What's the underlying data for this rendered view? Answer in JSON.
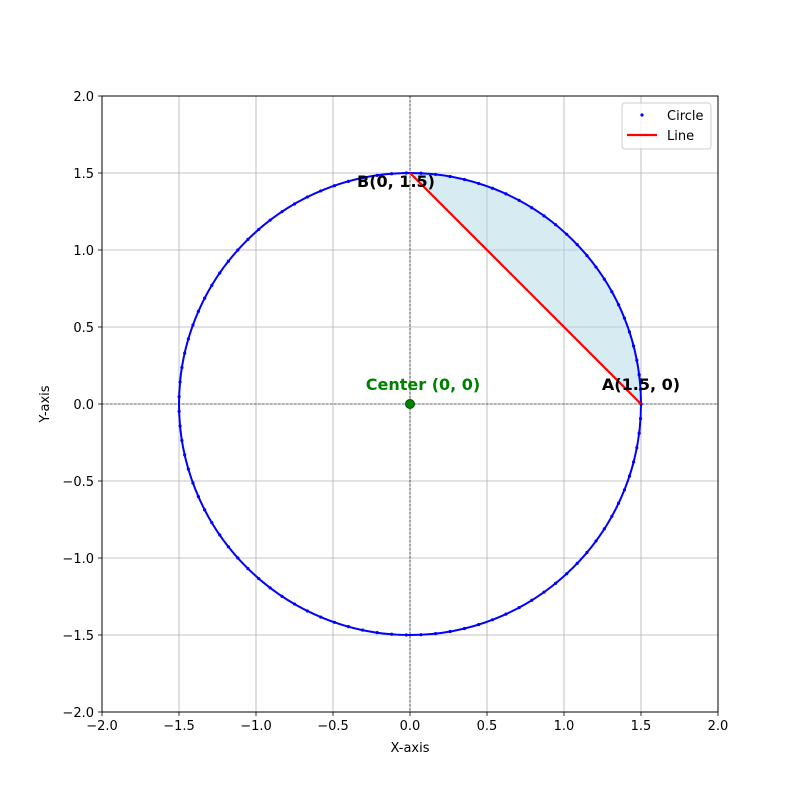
{
  "chart_data": {
    "type": "scatter",
    "xlabel": "X-axis",
    "ylabel": "Y-axis",
    "xlim": [
      -2.0,
      2.0
    ],
    "ylim": [
      -2.0,
      2.0
    ],
    "xticks": [
      -2.0,
      -1.5,
      -1.0,
      -0.5,
      0.0,
      0.5,
      1.0,
      1.5,
      2.0
    ],
    "yticks": [
      -2.0,
      -1.5,
      -1.0,
      -0.5,
      0.0,
      0.5,
      1.0,
      1.5,
      2.0
    ],
    "xtick_labels": [
      "−2.0",
      "−1.5",
      "−1.0",
      "−0.5",
      "0.0",
      "0.5",
      "1.0",
      "1.5",
      "2.0"
    ],
    "ytick_labels": [
      "−2.0",
      "−1.5",
      "−1.0",
      "−0.5",
      "0.0",
      "0.5",
      "1.0",
      "1.5",
      "2.0"
    ],
    "grid": true,
    "legend_position": "top-right",
    "circle": {
      "name": "Circle",
      "center": [
        0,
        0
      ],
      "radius": 1.5,
      "point_count": 100,
      "color": "#0000ff"
    },
    "line": {
      "name": "Line",
      "from": [
        1.5,
        0
      ],
      "to": [
        0,
        1.5
      ],
      "color": "#ff0000"
    },
    "shaded_segment": {
      "from_angle_deg": 0,
      "to_angle_deg": 90,
      "color": "#add8e6"
    },
    "points": [
      {
        "label": "A(1.5, 0)",
        "x": 1.5,
        "y": 0,
        "color": "#000000"
      },
      {
        "label": "B(0, 1.5)",
        "x": 0,
        "y": 1.5,
        "color": "#000000"
      }
    ],
    "center_point": {
      "label": "Center (0, 0)",
      "x": 0,
      "y": 0,
      "color": "#008000"
    },
    "legend": [
      {
        "label": "Circle",
        "marker": "dot",
        "color": "#0000ff"
      },
      {
        "label": "Line",
        "marker": "line",
        "color": "#ff0000"
      }
    ]
  }
}
